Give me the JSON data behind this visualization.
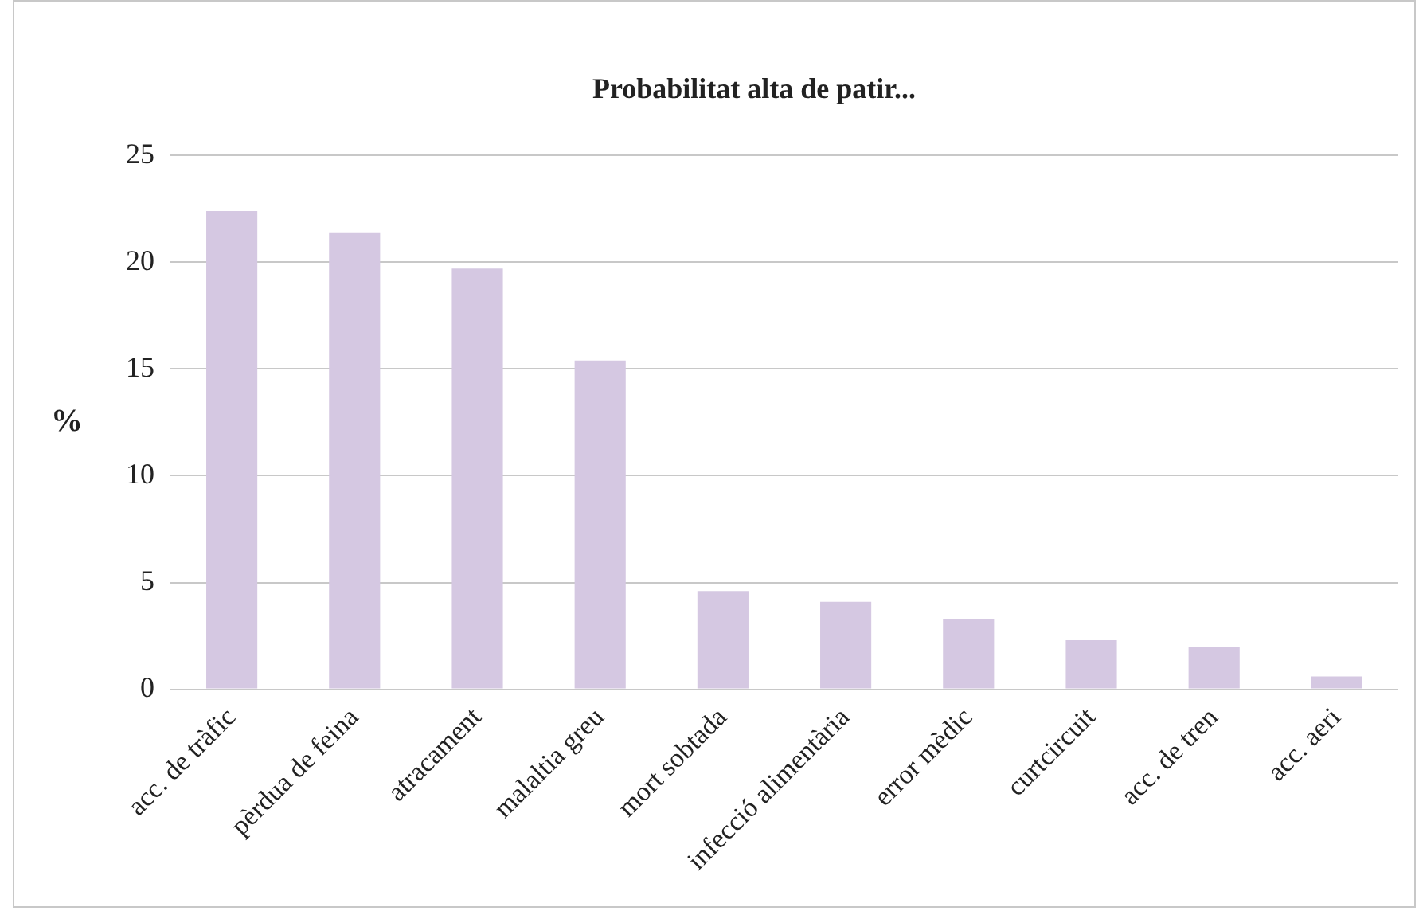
{
  "chart_data": {
    "type": "bar",
    "title": "Probabilitat alta de patir...",
    "ylabel": "%",
    "categories": [
      "acc. de tràfic",
      "pèrdua de feina",
      "atracament",
      "malaltia greu",
      "mort sobtada",
      "infecció alimentària",
      "error mèdic",
      "curtcircuit",
      "acc. de tren",
      "acc. aeri"
    ],
    "values": [
      22.4,
      21.4,
      19.7,
      15.4,
      4.6,
      4.1,
      3.3,
      2.3,
      2.0,
      0.6
    ],
    "color": "#d5c8e2",
    "ylim": [
      0,
      25
    ],
    "yticks": [
      0,
      5,
      10,
      15,
      20,
      25
    ],
    "grid": "y",
    "legend": false
  }
}
